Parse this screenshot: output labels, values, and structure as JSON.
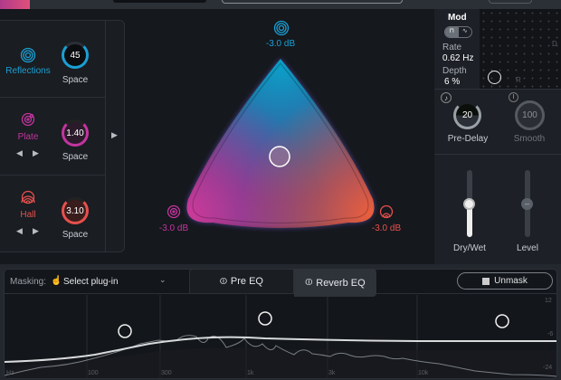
{
  "reverb": {
    "types": [
      {
        "name": "Reflections",
        "space_label": "Space",
        "value": "45",
        "color": "#1aa0d4",
        "icon": "concentric-circles-icon"
      },
      {
        "name": "Plate",
        "space_label": "Space",
        "value": "1.40",
        "color": "#c2359e",
        "icon": "plate-icon"
      },
      {
        "name": "Hall",
        "space_label": "Space",
        "value": "3.10",
        "color": "#e7504d",
        "icon": "hall-icon"
      }
    ],
    "blend": {
      "top_db": "-3.0 dB",
      "left_db": "-3.0 dB",
      "right_db": "-3.0 dB"
    }
  },
  "mod": {
    "title": "Mod",
    "rate_label": "Rate",
    "rate_value": "0.62 Hz",
    "depth_label": "Depth",
    "depth_value": "6 %",
    "axis_d": "D",
    "axis_r": "R"
  },
  "predelay": {
    "label": "Pre-Delay",
    "value": "20"
  },
  "smooth": {
    "label": "Smooth",
    "value": "100"
  },
  "drywet": {
    "label": "Dry/Wet",
    "level": 0.5
  },
  "level": {
    "label": "Level",
    "level": 0.5
  },
  "eq": {
    "masking_label": "Masking:",
    "masking_value": "Select plug-in",
    "tabs": [
      {
        "label": "Pre EQ",
        "active": false
      },
      {
        "label": "Reverb EQ",
        "active": true
      }
    ],
    "unmask_label": "Unmask",
    "freq_labels": [
      "Hz",
      "100",
      "300",
      "1k",
      "3k",
      "10k"
    ],
    "db_labels": [
      "12",
      "-6",
      "-24"
    ]
  }
}
